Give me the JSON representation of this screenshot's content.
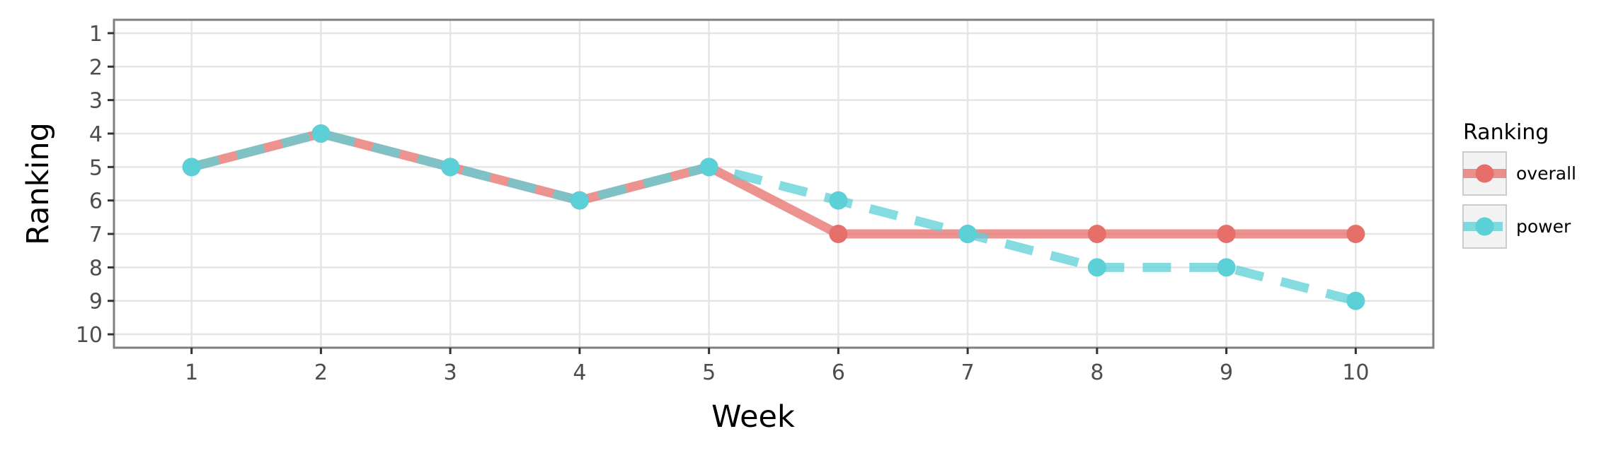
{
  "chart_data": {
    "type": "line",
    "xlabel": "Week",
    "ylabel": "Ranking",
    "x": [
      1,
      2,
      3,
      4,
      5,
      6,
      7,
      8,
      9,
      10
    ],
    "x_tick_labels": [
      "1",
      "2",
      "3",
      "4",
      "5",
      "6",
      "7",
      "8",
      "9",
      "10"
    ],
    "y_tick_labels": [
      "1",
      "2",
      "3",
      "4",
      "5",
      "6",
      "7",
      "8",
      "9",
      "10"
    ],
    "xlim": [
      0.4,
      10.6
    ],
    "ylim": [
      10.4,
      0.6
    ],
    "y_reversed": true,
    "grid": true,
    "legend": {
      "title": "Ranking",
      "placement": "right"
    },
    "series": [
      {
        "name": "overall",
        "values": [
          5,
          4,
          5,
          6,
          5,
          7,
          7,
          7,
          7,
          7
        ],
        "color": "#E76F6A",
        "line_style": "solid"
      },
      {
        "name": "power",
        "values": [
          5,
          4,
          5,
          6,
          5,
          6,
          7,
          8,
          8,
          9
        ],
        "color": "#5BD0D7",
        "line_style": "dashed"
      }
    ]
  }
}
